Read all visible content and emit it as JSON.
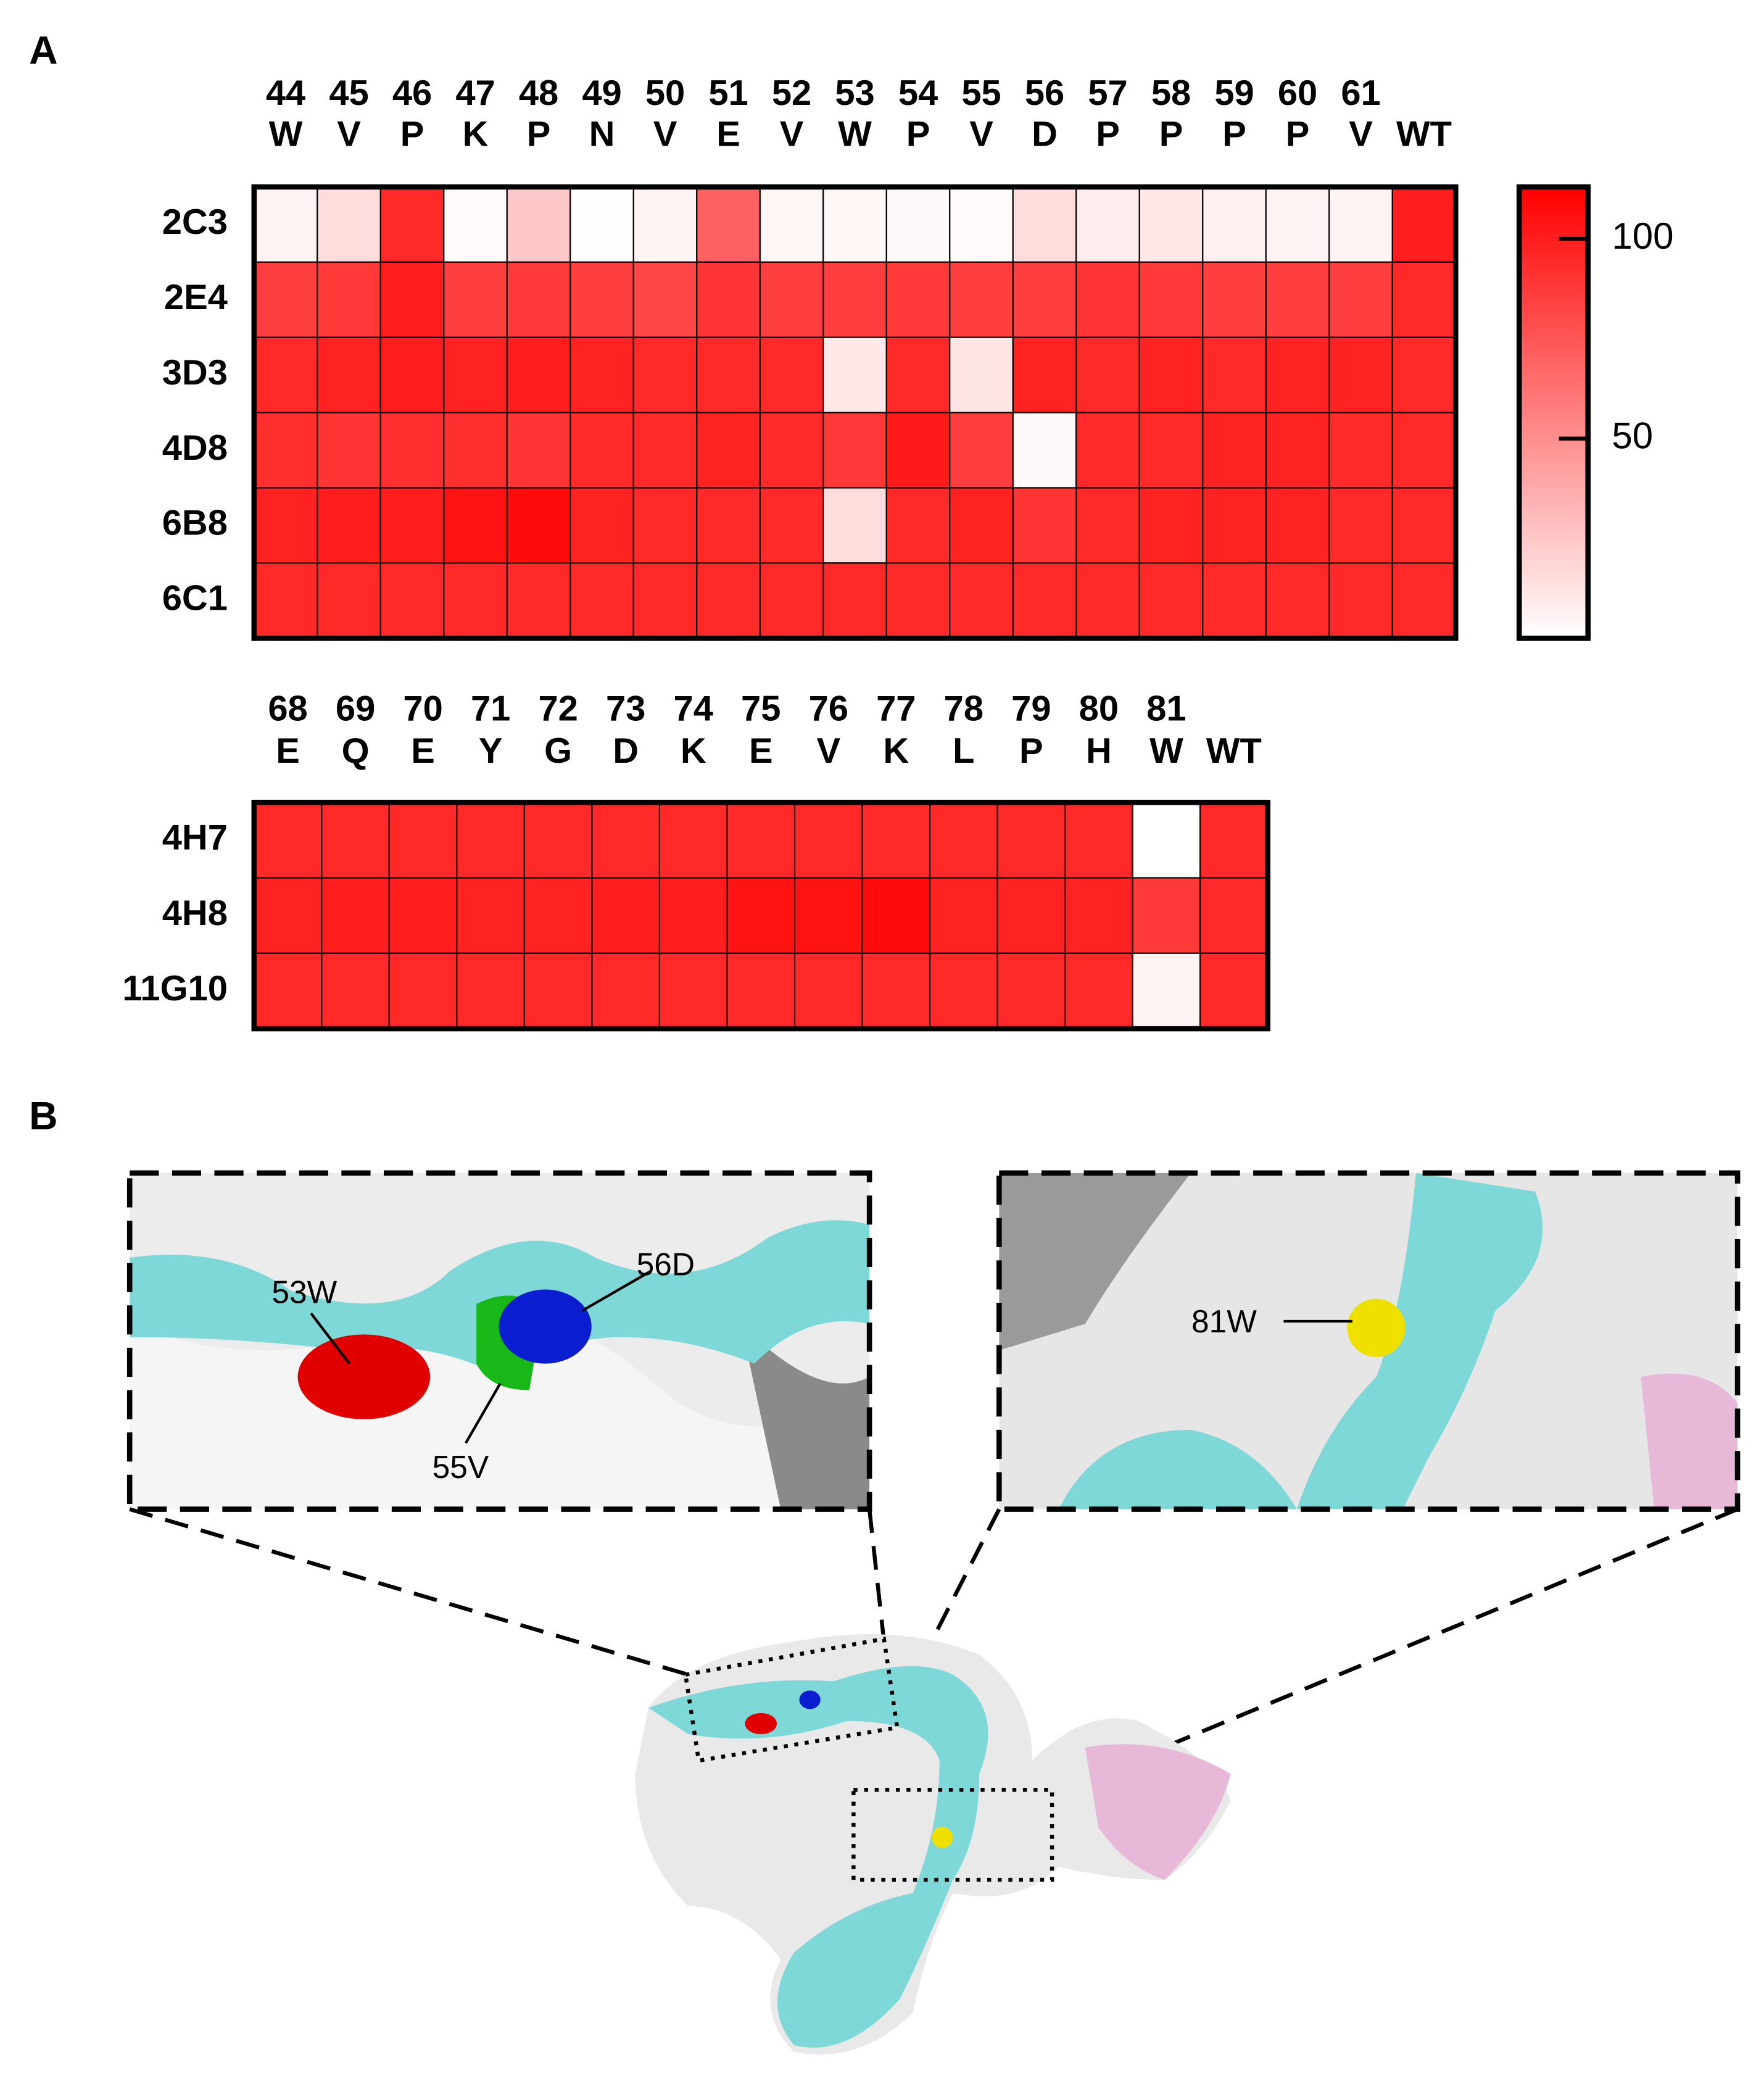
{
  "panel_a": {
    "label": "A"
  },
  "chart_data": [
    {
      "type": "heatmap",
      "x_numbers": [
        "44",
        "45",
        "46",
        "47",
        "48",
        "49",
        "50",
        "51",
        "52",
        "53",
        "54",
        "55",
        "56",
        "57",
        "58",
        "59",
        "60",
        "61",
        null
      ],
      "x_residues": [
        "W",
        "V",
        "P",
        "K",
        "P",
        "N",
        "V",
        "E",
        "V",
        "W",
        "P",
        "V",
        "D",
        "P",
        "P",
        "P",
        "P",
        "V",
        "WT"
      ],
      "rows": [
        "2C3",
        "2E4",
        "3D3",
        "4D8",
        "6B8",
        "6C1"
      ],
      "values": [
        [
          5,
          15,
          95,
          2,
          25,
          1,
          5,
          70,
          4,
          4,
          3,
          2,
          15,
          8,
          10,
          6,
          5,
          5,
          100
        ],
        [
          85,
          88,
          100,
          85,
          88,
          85,
          82,
          90,
          85,
          85,
          88,
          85,
          85,
          90,
          88,
          85,
          85,
          85,
          95
        ],
        [
          95,
          98,
          100,
          98,
          100,
          98,
          95,
          95,
          95,
          10,
          95,
          12,
          98,
          95,
          98,
          95,
          98,
          98,
          95
        ],
        [
          92,
          90,
          92,
          92,
          90,
          95,
          95,
          98,
          95,
          88,
          102,
          85,
          3,
          95,
          95,
          98,
          98,
          95,
          95
        ],
        [
          98,
          100,
          100,
          105,
          108,
          98,
          95,
          95,
          95,
          15,
          95,
          98,
          90,
          95,
          98,
          98,
          98,
          95,
          95
        ],
        [
          95,
          95,
          95,
          95,
          95,
          95,
          95,
          95,
          95,
          95,
          95,
          95,
          95,
          95,
          95,
          95,
          95,
          95,
          95
        ]
      ]
    },
    {
      "type": "heatmap",
      "x_numbers": [
        "68",
        "69",
        "70",
        "71",
        "72",
        "73",
        "74",
        "75",
        "76",
        "77",
        "78",
        "79",
        "80",
        "81",
        null
      ],
      "x_residues": [
        "E",
        "Q",
        "E",
        "Y",
        "G",
        "D",
        "K",
        "E",
        "V",
        "K",
        "L",
        "P",
        "H",
        "W",
        "WT"
      ],
      "rows": [
        "4H7",
        "4H8",
        "11G10"
      ],
      "values": [
        [
          95,
          95,
          95,
          95,
          95,
          95,
          95,
          95,
          95,
          95,
          95,
          95,
          95,
          0,
          95
        ],
        [
          98,
          100,
          100,
          98,
          98,
          100,
          100,
          105,
          105,
          108,
          98,
          98,
          98,
          88,
          95
        ],
        [
          95,
          95,
          95,
          95,
          95,
          95,
          95,
          95,
          95,
          95,
          95,
          95,
          95,
          5,
          95
        ]
      ]
    }
  ],
  "colorbar": {
    "lim": [
      0,
      113
    ],
    "ticks": [
      50,
      100
    ],
    "colors": [
      "#ffffff",
      "#ff0000"
    ]
  },
  "panel_b": {
    "label": "B",
    "annotations": [
      "53W",
      "56D",
      "55V",
      "81W"
    ]
  }
}
